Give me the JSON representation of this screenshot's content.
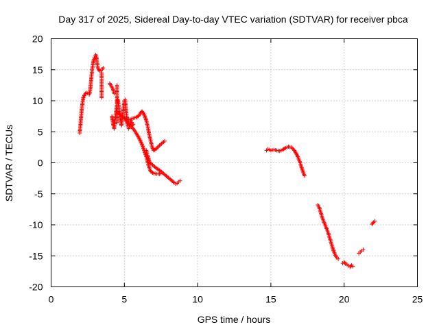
{
  "chart_data": {
    "type": "scatter",
    "title": "Day 317 of 2025, Sidereal Day-to-day VTEC variation (SDTVAR) for receiver pbca",
    "xlabel": "GPS time / hours",
    "ylabel": "SDTVAR / TECUs",
    "xlim": [
      0,
      25
    ],
    "ylim": [
      -20,
      20
    ],
    "xticks": [
      0,
      5,
      10,
      15,
      20,
      25
    ],
    "yticks": [
      -20,
      -15,
      -10,
      -5,
      0,
      5,
      10,
      15,
      20
    ],
    "grid": true,
    "marker": "+",
    "series_color": "#ff0000",
    "series": [
      {
        "name": "pbca",
        "segments": [
          [
            [
              1.95,
              4.8
            ],
            [
              2.0,
              6.0
            ],
            [
              2.05,
              7.5
            ],
            [
              2.1,
              8.8
            ],
            [
              2.15,
              9.8
            ],
            [
              2.2,
              10.5
            ],
            [
              2.3,
              11.0
            ],
            [
              2.4,
              11.3
            ],
            [
              2.5,
              11.2
            ],
            [
              2.6,
              11.0
            ],
            [
              2.65,
              11.4
            ],
            [
              2.7,
              12.5
            ],
            [
              2.75,
              13.8
            ],
            [
              2.8,
              15.0
            ],
            [
              2.85,
              15.8
            ],
            [
              2.9,
              16.5
            ],
            [
              2.95,
              16.9
            ],
            [
              3.0,
              17.2
            ],
            [
              3.05,
              17.4
            ],
            [
              3.1,
              17.0
            ],
            [
              3.15,
              16.0
            ],
            [
              3.2,
              15.2
            ],
            [
              3.3,
              14.8
            ],
            [
              3.4,
              14.9
            ],
            [
              3.5,
              15.1
            ],
            [
              3.55,
              15.3
            ]
          ],
          [
            [
              3.45,
              10.5
            ],
            [
              3.45,
              11.5
            ],
            [
              3.45,
              12.5
            ],
            [
              3.45,
              13.5
            ],
            [
              3.45,
              14.5
            ]
          ],
          [
            [
              4.0,
              12.8
            ],
            [
              4.05,
              12.6
            ],
            [
              4.1,
              12.4
            ],
            [
              4.15,
              12.2
            ],
            [
              4.2,
              12.0
            ],
            [
              4.25,
              11.6
            ],
            [
              4.3,
              11.2
            ]
          ],
          [
            [
              4.15,
              7.5
            ],
            [
              4.2,
              6.8
            ],
            [
              4.25,
              6.0
            ],
            [
              4.3,
              5.5
            ],
            [
              4.35,
              6.5
            ],
            [
              4.4,
              7.5
            ],
            [
              4.45,
              8.5
            ],
            [
              4.5,
              9.5
            ],
            [
              4.55,
              10.2
            ],
            [
              4.6,
              9.5
            ],
            [
              4.65,
              8.5
            ],
            [
              4.7,
              7.5
            ],
            [
              4.75,
              6.8
            ],
            [
              4.8,
              6.0
            ],
            [
              4.85,
              7.0
            ],
            [
              4.9,
              8.0
            ],
            [
              4.95,
              9.0
            ],
            [
              5.0,
              10.0
            ],
            [
              5.05,
              10.2
            ],
            [
              5.1,
              9.0
            ],
            [
              5.15,
              7.5
            ],
            [
              5.2,
              6.5
            ],
            [
              5.25,
              5.8
            ],
            [
              5.3,
              5.5
            ],
            [
              5.35,
              5.8
            ],
            [
              5.4,
              6.2
            ],
            [
              5.45,
              6.8
            ],
            [
              5.5,
              6.5
            ],
            [
              5.55,
              6.0
            ],
            [
              5.6,
              6.2
            ]
          ],
          [
            [
              4.5,
              12.5
            ],
            [
              4.5,
              11.5
            ],
            [
              4.5,
              10.5
            ],
            [
              4.5,
              9.5
            ],
            [
              4.5,
              8.5
            ],
            [
              4.5,
              7.5
            ],
            [
              4.5,
              6.5
            ]
          ],
          [
            [
              4.6,
              8.0
            ],
            [
              4.8,
              7.5
            ],
            [
              5.0,
              7.2
            ],
            [
              5.2,
              7.0
            ],
            [
              5.4,
              7.0
            ],
            [
              5.6,
              7.2
            ],
            [
              5.8,
              7.3
            ],
            [
              6.0,
              7.6
            ],
            [
              6.1,
              8.0
            ],
            [
              6.2,
              8.3
            ],
            [
              6.3,
              8.0
            ],
            [
              6.4,
              7.5
            ],
            [
              6.5,
              6.8
            ],
            [
              6.6,
              5.8
            ],
            [
              6.7,
              4.5
            ],
            [
              6.8,
              3.5
            ],
            [
              6.9,
              2.5
            ],
            [
              7.0,
              2.0
            ],
            [
              7.2,
              2.3
            ],
            [
              7.4,
              2.8
            ],
            [
              7.6,
              3.2
            ],
            [
              7.75,
              3.5
            ]
          ],
          [
            [
              5.0,
              7.2
            ],
            [
              5.2,
              6.5
            ],
            [
              5.4,
              6.0
            ],
            [
              5.6,
              5.5
            ],
            [
              5.8,
              4.8
            ],
            [
              6.0,
              4.0
            ],
            [
              6.2,
              3.0
            ],
            [
              6.35,
              2.0
            ],
            [
              6.5,
              1.0
            ],
            [
              6.6,
              0.0
            ],
            [
              6.7,
              -0.8
            ],
            [
              6.8,
              -1.4
            ],
            [
              7.0,
              -1.7
            ],
            [
              7.2,
              -1.8
            ],
            [
              7.4,
              -1.8
            ],
            [
              7.5,
              -1.7
            ]
          ],
          [
            [
              6.5,
              2.0
            ],
            [
              6.6,
              1.0
            ],
            [
              6.7,
              0.3
            ],
            [
              6.8,
              -0.1
            ],
            [
              7.0,
              -0.5
            ],
            [
              7.2,
              -0.9
            ],
            [
              7.4,
              -1.2
            ],
            [
              7.6,
              -1.6
            ],
            [
              7.8,
              -2.0
            ],
            [
              8.0,
              -2.4
            ],
            [
              8.2,
              -2.8
            ],
            [
              8.4,
              -3.2
            ],
            [
              8.5,
              -3.4
            ],
            [
              8.6,
              -3.3
            ],
            [
              8.7,
              -3.1
            ],
            [
              8.8,
              -2.9
            ]
          ],
          [
            [
              14.7,
              2.0
            ],
            [
              14.8,
              2.2
            ],
            [
              14.9,
              2.1
            ],
            [
              15.0,
              2.0
            ],
            [
              15.2,
              2.1
            ],
            [
              15.4,
              2.0
            ],
            [
              15.6,
              1.9
            ],
            [
              15.8,
              2.1
            ],
            [
              16.0,
              2.4
            ],
            [
              16.2,
              2.6
            ],
            [
              16.4,
              2.5
            ],
            [
              16.6,
              2.0
            ],
            [
              16.8,
              1.2
            ],
            [
              16.9,
              0.6
            ],
            [
              17.0,
              0.0
            ],
            [
              17.1,
              -0.8
            ],
            [
              17.2,
              -1.5
            ],
            [
              17.3,
              -2.1
            ]
          ],
          [
            [
              18.2,
              -6.8
            ],
            [
              18.3,
              -7.2
            ],
            [
              18.4,
              -8.0
            ],
            [
              18.5,
              -8.8
            ],
            [
              18.6,
              -9.4
            ],
            [
              18.7,
              -10.0
            ],
            [
              18.8,
              -10.6
            ],
            [
              18.9,
              -11.2
            ],
            [
              19.0,
              -12.0
            ],
            [
              19.1,
              -12.8
            ],
            [
              19.2,
              -13.6
            ],
            [
              19.3,
              -14.3
            ],
            [
              19.4,
              -14.9
            ],
            [
              19.5,
              -15.3
            ],
            [
              19.6,
              -15.5
            ]
          ],
          [
            [
              19.9,
              -16.2
            ],
            [
              20.0,
              -16.0
            ],
            [
              20.1,
              -16.3
            ],
            [
              20.2,
              -16.4
            ],
            [
              20.3,
              -16.6
            ],
            [
              20.4,
              -16.8
            ],
            [
              20.5,
              -16.5
            ],
            [
              20.6,
              -16.7
            ]
          ],
          [
            [
              21.0,
              -14.6
            ],
            [
              21.1,
              -14.4
            ],
            [
              21.2,
              -14.2
            ],
            [
              21.3,
              -14.0
            ]
          ],
          [
            [
              21.9,
              -9.9
            ],
            [
              22.0,
              -9.6
            ],
            [
              22.1,
              -9.4
            ]
          ]
        ]
      }
    ]
  }
}
